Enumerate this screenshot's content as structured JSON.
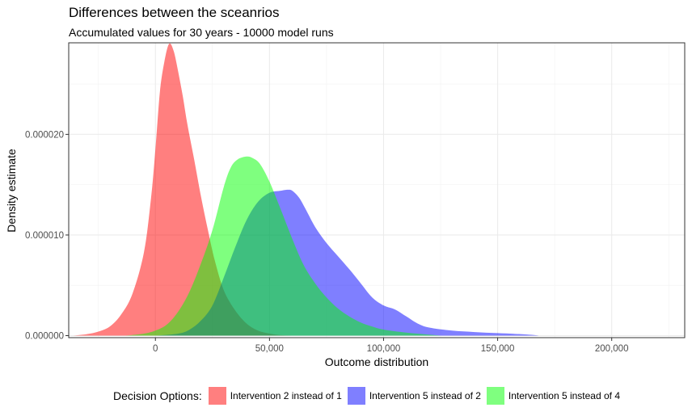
{
  "chart_data": {
    "type": "area",
    "subtype": "density",
    "title": "Differences between the sceanrios",
    "subtitle": "Accumulated values for 30 years - 10000 model runs",
    "xlabel": "Outcome distribution",
    "ylabel": "Density estimate",
    "xlim": [
      -38000,
      232000
    ],
    "ylim": [
      -2e-07,
      2.91e-05
    ],
    "x_ticks": [
      0,
      50000,
      100000,
      150000,
      200000
    ],
    "x_tick_labels": [
      "0",
      "50,000",
      "100,000",
      "150,000",
      "200,000"
    ],
    "y_ticks": [
      0.0,
      1e-05,
      2e-05
    ],
    "y_tick_labels": [
      "0.000000",
      "0.000010",
      "0.000020"
    ],
    "grid": true,
    "legend_title": "Decision Options:",
    "legend_position": "bottom",
    "series": [
      {
        "name": "Intervention 2 instead of 1",
        "color": "#FF0000",
        "opacity": 0.5,
        "points": [
          [
            -36000,
            0.0
          ],
          [
            -30000,
            1.5e-07
          ],
          [
            -25000,
            4e-07
          ],
          [
            -20000,
            9e-07
          ],
          [
            -15000,
            2.1e-06
          ],
          [
            -10000,
            4.2e-06
          ],
          [
            -5000,
            8.3e-06
          ],
          [
            -2000,
            1.35e-05
          ],
          [
            0,
            1.85e-05
          ],
          [
            2000,
            2.43e-05
          ],
          [
            4000,
            2.73e-05
          ],
          [
            6000,
            2.9e-05
          ],
          [
            8000,
            2.83e-05
          ],
          [
            10000,
            2.62e-05
          ],
          [
            12000,
            2.38e-05
          ],
          [
            14000,
            2.1e-05
          ],
          [
            17000,
            1.75e-05
          ],
          [
            20000,
            1.38e-05
          ],
          [
            23000,
            1.05e-05
          ],
          [
            26000,
            7.5e-06
          ],
          [
            30000,
            4.5e-06
          ],
          [
            35000,
            2.5e-06
          ],
          [
            40000,
            1.2e-06
          ],
          [
            45000,
            5e-07
          ],
          [
            50000,
            2e-07
          ],
          [
            55000,
            5e-08
          ],
          [
            60000,
            0.0
          ]
        ]
      },
      {
        "name": "Intervention 5 instead of 2",
        "color": "#0000FF",
        "opacity": 0.5,
        "points": [
          [
            0,
            0.0
          ],
          [
            10000,
            2e-07
          ],
          [
            15000,
            6e-07
          ],
          [
            20000,
            1.5e-06
          ],
          [
            25000,
            3e-06
          ],
          [
            30000,
            5.8e-06
          ],
          [
            35000,
            8.8e-06
          ],
          [
            40000,
            1.15e-05
          ],
          [
            45000,
            1.33e-05
          ],
          [
            50000,
            1.42e-05
          ],
          [
            55000,
            1.44e-05
          ],
          [
            58000,
            1.45e-05
          ],
          [
            60000,
            1.44e-05
          ],
          [
            63000,
            1.37e-05
          ],
          [
            66000,
            1.25e-05
          ],
          [
            70000,
            1.08e-05
          ],
          [
            75000,
            9.2e-06
          ],
          [
            80000,
            7.9e-06
          ],
          [
            85000,
            6.6e-06
          ],
          [
            90000,
            5.2e-06
          ],
          [
            95000,
            3.8e-06
          ],
          [
            100000,
            3e-06
          ],
          [
            105000,
            2.6e-06
          ],
          [
            110000,
            1.9e-06
          ],
          [
            115000,
            1.2e-06
          ],
          [
            120000,
            8e-07
          ],
          [
            130000,
            5e-07
          ],
          [
            140000,
            3.5e-07
          ],
          [
            150000,
            2.5e-07
          ],
          [
            160000,
            1.5e-07
          ],
          [
            165000,
            8e-08
          ],
          [
            168000,
            0.0
          ]
        ]
      },
      {
        "name": "Intervention 5 instead of 4",
        "color": "#00FF00",
        "opacity": 0.5,
        "points": [
          [
            -13000,
            0.0
          ],
          [
            -5000,
            2e-07
          ],
          [
            0,
            5e-07
          ],
          [
            5000,
            1.1e-06
          ],
          [
            10000,
            2.4e-06
          ],
          [
            15000,
            4.4e-06
          ],
          [
            20000,
            7.2e-06
          ],
          [
            25000,
            1.05e-05
          ],
          [
            30000,
            1.48e-05
          ],
          [
            33000,
            1.67e-05
          ],
          [
            36000,
            1.75e-05
          ],
          [
            40000,
            1.78e-05
          ],
          [
            43000,
            1.76e-05
          ],
          [
            46000,
            1.7e-05
          ],
          [
            50000,
            1.53e-05
          ],
          [
            55000,
            1.25e-05
          ],
          [
            60000,
            9.6e-06
          ],
          [
            65000,
            7e-06
          ],
          [
            70000,
            5.2e-06
          ],
          [
            75000,
            3.8e-06
          ],
          [
            80000,
            2.7e-06
          ],
          [
            85000,
            1.9e-06
          ],
          [
            90000,
            1.3e-06
          ],
          [
            95000,
            9e-07
          ],
          [
            100000,
            6e-07
          ],
          [
            110000,
            3e-07
          ],
          [
            120000,
            1e-07
          ],
          [
            125000,
            0.0
          ]
        ]
      }
    ]
  }
}
